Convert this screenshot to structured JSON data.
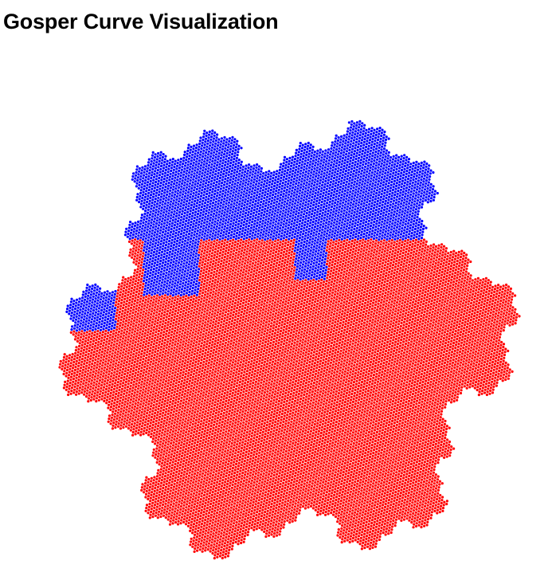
{
  "page": {
    "title": "Gosper Curve Visualization"
  },
  "chart_data": {
    "type": "scatter",
    "title": "Gosper Curve Visualization",
    "xlabel": "",
    "ylabel": "",
    "axes_visible": false,
    "grid": false,
    "legend": "none",
    "curve": "gosper-flowsnake",
    "order": 5,
    "marker": "dot",
    "series": [
      {
        "color": "#ff0000",
        "role": "main-body",
        "approx_points": 2300
      },
      {
        "color": "#0000ff",
        "role": "upper-lobes-and-left-lobe",
        "approx_points": 430
      }
    ]
  }
}
